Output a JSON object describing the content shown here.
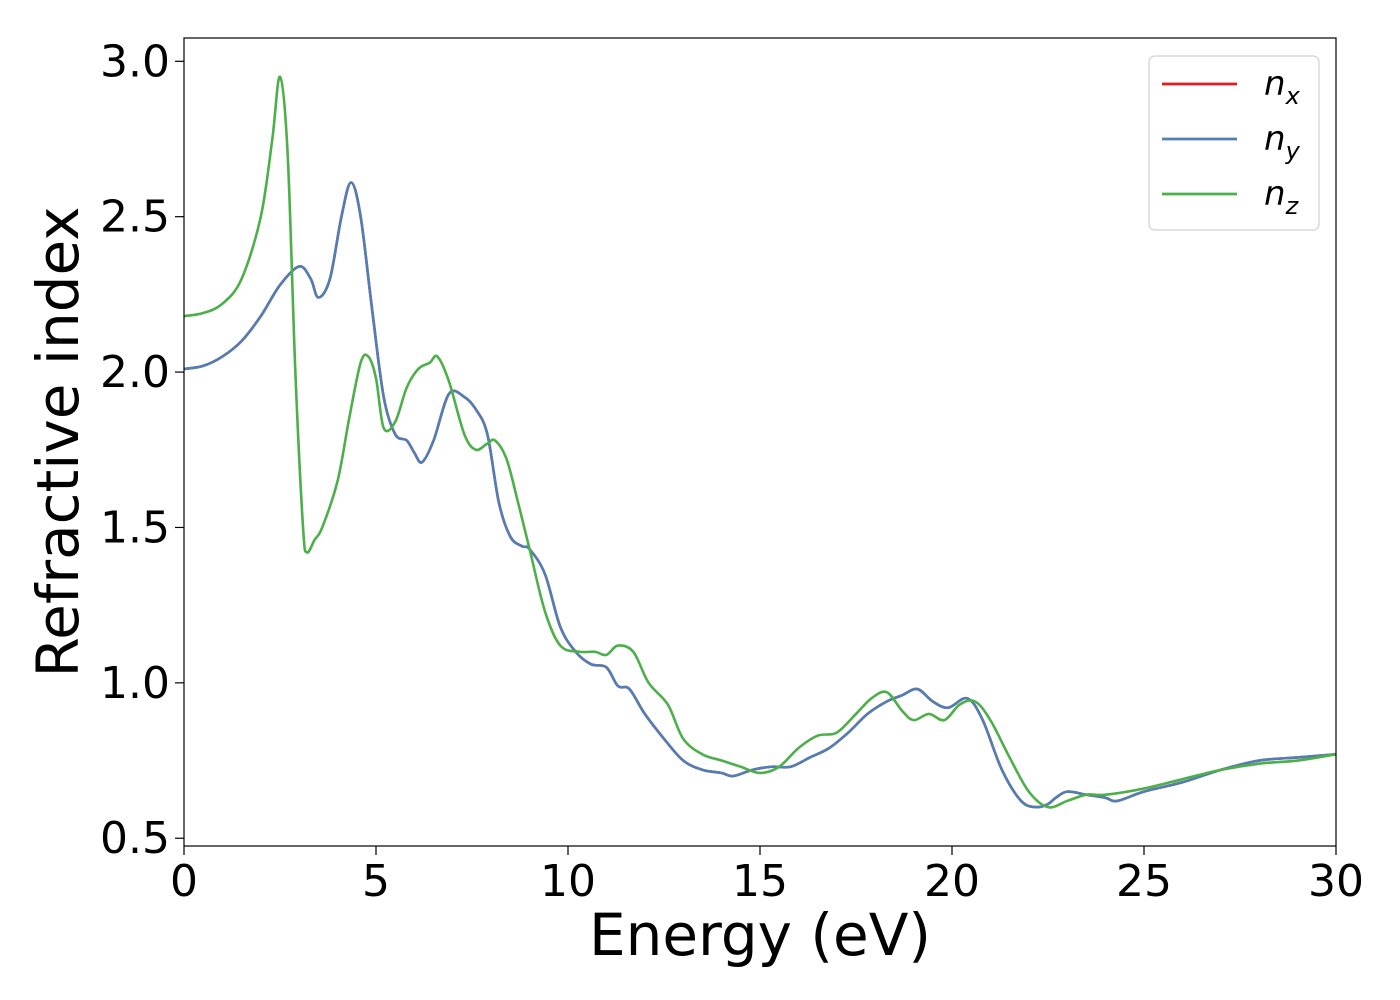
{
  "chart_data": {
    "type": "line",
    "xlabel": "Energy (eV)",
    "ylabel": "Refractive index",
    "xlim": [
      0,
      30
    ],
    "ylim": [
      0.475,
      3.075
    ],
    "xticks": [
      0,
      5,
      10,
      15,
      20,
      25,
      30
    ],
    "xtick_labels": [
      "0",
      "5",
      "10",
      "15",
      "20",
      "25",
      "30"
    ],
    "yticks": [
      0.5,
      1.0,
      1.5,
      2.0,
      2.5,
      3.0
    ],
    "ytick_labels": [
      "0.5",
      "1.0",
      "1.5",
      "2.0",
      "2.5",
      "3.0"
    ],
    "grid": false,
    "legend_position": "top-right",
    "series": [
      {
        "name": "x",
        "color": "#e41a1c",
        "x": [
          0,
          0.5,
          1.0,
          1.5,
          2.0,
          2.5,
          3.0,
          3.3,
          3.5,
          3.8,
          4.1,
          4.35,
          4.6,
          4.9,
          5.2,
          5.5,
          5.8,
          6.0,
          6.2,
          6.5,
          6.9,
          7.3,
          7.6,
          7.9,
          8.2,
          8.5,
          8.8,
          9.0,
          9.4,
          9.8,
          10.2,
          10.6,
          11.0,
          11.3,
          11.6,
          12.0,
          12.5,
          13.0,
          13.5,
          14.0,
          14.3,
          14.8,
          15.3,
          15.8,
          16.3,
          16.8,
          17.3,
          17.8,
          18.3,
          18.7,
          19.1,
          19.5,
          19.9,
          20.4,
          20.8,
          21.3,
          21.8,
          22.2,
          22.5,
          22.7,
          23.0,
          23.5,
          24.0,
          24.3,
          25.0,
          26.0,
          27.0,
          28.0,
          29.0,
          30.0
        ],
        "values": [
          2.01,
          2.02,
          2.05,
          2.1,
          2.18,
          2.28,
          2.34,
          2.3,
          2.24,
          2.3,
          2.5,
          2.61,
          2.5,
          2.2,
          1.92,
          1.8,
          1.78,
          1.74,
          1.71,
          1.78,
          1.93,
          1.92,
          1.88,
          1.8,
          1.58,
          1.47,
          1.44,
          1.43,
          1.35,
          1.18,
          1.1,
          1.06,
          1.05,
          0.99,
          0.98,
          0.9,
          0.82,
          0.75,
          0.72,
          0.71,
          0.7,
          0.72,
          0.73,
          0.73,
          0.76,
          0.79,
          0.84,
          0.9,
          0.94,
          0.96,
          0.98,
          0.94,
          0.92,
          0.95,
          0.88,
          0.72,
          0.62,
          0.6,
          0.61,
          0.63,
          0.65,
          0.64,
          0.63,
          0.62,
          0.65,
          0.68,
          0.72,
          0.75,
          0.76,
          0.77
        ]
      },
      {
        "name": "y",
        "color": "#4f7fb5",
        "x": [
          0,
          0.5,
          1.0,
          1.5,
          2.0,
          2.5,
          3.0,
          3.3,
          3.5,
          3.8,
          4.1,
          4.35,
          4.6,
          4.9,
          5.2,
          5.5,
          5.8,
          6.0,
          6.2,
          6.5,
          6.9,
          7.3,
          7.6,
          7.9,
          8.2,
          8.5,
          8.8,
          9.0,
          9.4,
          9.8,
          10.2,
          10.6,
          11.0,
          11.3,
          11.6,
          12.0,
          12.5,
          13.0,
          13.5,
          14.0,
          14.3,
          14.8,
          15.3,
          15.8,
          16.3,
          16.8,
          17.3,
          17.8,
          18.3,
          18.7,
          19.1,
          19.5,
          19.9,
          20.4,
          20.8,
          21.3,
          21.8,
          22.2,
          22.5,
          22.7,
          23.0,
          23.5,
          24.0,
          24.3,
          25.0,
          26.0,
          27.0,
          28.0,
          29.0,
          30.0
        ],
        "values": [
          2.01,
          2.02,
          2.05,
          2.1,
          2.18,
          2.28,
          2.34,
          2.3,
          2.24,
          2.3,
          2.5,
          2.61,
          2.5,
          2.2,
          1.92,
          1.8,
          1.78,
          1.74,
          1.71,
          1.78,
          1.93,
          1.92,
          1.88,
          1.8,
          1.58,
          1.47,
          1.44,
          1.43,
          1.35,
          1.18,
          1.1,
          1.06,
          1.05,
          0.99,
          0.98,
          0.9,
          0.82,
          0.75,
          0.72,
          0.71,
          0.7,
          0.72,
          0.73,
          0.73,
          0.76,
          0.79,
          0.84,
          0.9,
          0.94,
          0.96,
          0.98,
          0.94,
          0.92,
          0.95,
          0.88,
          0.72,
          0.62,
          0.6,
          0.61,
          0.63,
          0.65,
          0.64,
          0.63,
          0.62,
          0.65,
          0.68,
          0.72,
          0.75,
          0.76,
          0.77
        ]
      },
      {
        "name": "z",
        "color": "#4daf4a",
        "x": [
          0,
          0.5,
          1.0,
          1.5,
          2.0,
          2.3,
          2.5,
          2.7,
          2.9,
          3.1,
          3.2,
          3.4,
          3.6,
          4.0,
          4.3,
          4.6,
          4.8,
          5.0,
          5.2,
          5.5,
          5.8,
          6.1,
          6.4,
          6.6,
          6.9,
          7.3,
          7.6,
          7.9,
          8.1,
          8.4,
          8.7,
          9.0,
          9.4,
          9.8,
          10.3,
          10.7,
          11.0,
          11.3,
          11.7,
          12.1,
          12.6,
          13.0,
          13.5,
          14.0,
          14.5,
          15.0,
          15.5,
          16.0,
          16.5,
          17.0,
          17.5,
          17.9,
          18.3,
          18.7,
          19.0,
          19.4,
          19.8,
          20.2,
          20.6,
          21.0,
          21.5,
          22.0,
          22.5,
          23.0,
          23.5,
          24.0,
          25.0,
          26.0,
          27.0,
          28.0,
          29.0,
          30.0
        ],
        "values": [
          2.18,
          2.19,
          2.22,
          2.3,
          2.5,
          2.75,
          2.95,
          2.7,
          2.0,
          1.5,
          1.42,
          1.46,
          1.5,
          1.65,
          1.85,
          2.03,
          2.05,
          1.98,
          1.82,
          1.84,
          1.95,
          2.01,
          2.03,
          2.05,
          1.97,
          1.8,
          1.75,
          1.77,
          1.78,
          1.72,
          1.58,
          1.43,
          1.23,
          1.12,
          1.1,
          1.1,
          1.09,
          1.12,
          1.1,
          1.0,
          0.93,
          0.82,
          0.77,
          0.75,
          0.73,
          0.71,
          0.73,
          0.79,
          0.83,
          0.84,
          0.9,
          0.95,
          0.97,
          0.91,
          0.88,
          0.9,
          0.88,
          0.93,
          0.94,
          0.88,
          0.76,
          0.65,
          0.6,
          0.62,
          0.64,
          0.64,
          0.66,
          0.69,
          0.72,
          0.74,
          0.75,
          0.77
        ]
      }
    ]
  }
}
